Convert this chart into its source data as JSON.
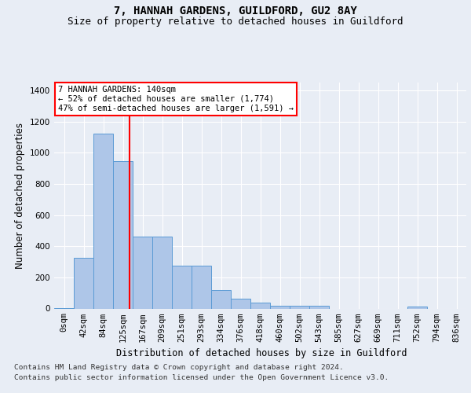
{
  "title1": "7, HANNAH GARDENS, GUILDFORD, GU2 8AY",
  "title2": "Size of property relative to detached houses in Guildford",
  "xlabel": "Distribution of detached houses by size in Guildford",
  "ylabel": "Number of detached properties",
  "categories": [
    "0sqm",
    "42sqm",
    "84sqm",
    "125sqm",
    "167sqm",
    "209sqm",
    "251sqm",
    "293sqm",
    "334sqm",
    "376sqm",
    "418sqm",
    "460sqm",
    "502sqm",
    "543sqm",
    "585sqm",
    "627sqm",
    "669sqm",
    "711sqm",
    "752sqm",
    "794sqm",
    "836sqm"
  ],
  "values": [
    5,
    325,
    1120,
    945,
    460,
    460,
    275,
    275,
    120,
    65,
    38,
    20,
    20,
    20,
    0,
    0,
    0,
    0,
    12,
    0,
    0
  ],
  "bar_color": "#aec6e8",
  "bar_edge_color": "#5b9bd5",
  "annotation_text": "7 HANNAH GARDENS: 140sqm\n← 52% of detached houses are smaller (1,774)\n47% of semi-detached houses are larger (1,591) →",
  "annotation_box_color": "white",
  "annotation_box_edge": "red",
  "footer1": "Contains HM Land Registry data © Crown copyright and database right 2024.",
  "footer2": "Contains public sector information licensed under the Open Government Licence v3.0.",
  "ylim": [
    0,
    1450
  ],
  "yticks": [
    0,
    200,
    400,
    600,
    800,
    1000,
    1200,
    1400
  ],
  "bg_color": "#e8edf5",
  "plot_bg_color": "#e8edf5",
  "grid_color": "white",
  "title1_fontsize": 10,
  "title2_fontsize": 9,
  "axis_label_fontsize": 8.5,
  "tick_fontsize": 7.5,
  "footer_fontsize": 6.8,
  "annot_fontsize": 7.5
}
